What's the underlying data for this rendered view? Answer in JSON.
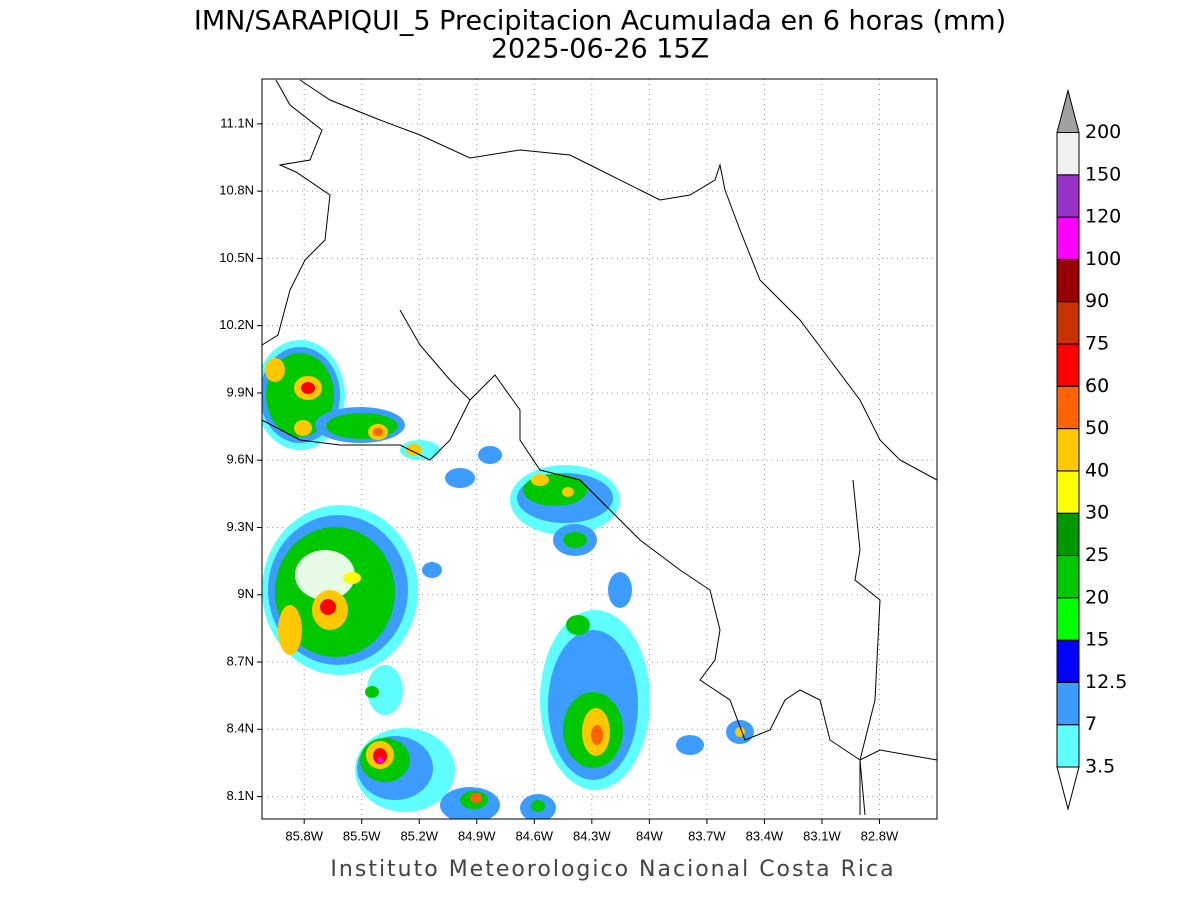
{
  "title": "IMN/SARAPIQUI_5 Precipitacion Acumulada en 6 horas (mm)",
  "subtitle": "2025-06-26 15Z",
  "footer": "Instituto Meteorologico Nacional Costa Rica",
  "map": {
    "xlim": [
      -86.02,
      -82.5
    ],
    "ylim": [
      8.0,
      11.3
    ],
    "grid": true,
    "xticks": [
      {
        "value": -85.8,
        "label": "85.8W"
      },
      {
        "value": -85.5,
        "label": "85.5W"
      },
      {
        "value": -85.2,
        "label": "85.2W"
      },
      {
        "value": -84.9,
        "label": "84.9W"
      },
      {
        "value": -84.6,
        "label": "84.6W"
      },
      {
        "value": -84.3,
        "label": "84.3W"
      },
      {
        "value": -84.0,
        "label": "84W"
      },
      {
        "value": -83.7,
        "label": "83.7W"
      },
      {
        "value": -83.4,
        "label": "83.4W"
      },
      {
        "value": -83.1,
        "label": "83.1W"
      },
      {
        "value": -82.8,
        "label": "82.8W"
      }
    ],
    "yticks": [
      {
        "value": 8.1,
        "label": "8.1N"
      },
      {
        "value": 8.4,
        "label": "8.4N"
      },
      {
        "value": 8.7,
        "label": "8.7N"
      },
      {
        "value": 9.0,
        "label": "9N"
      },
      {
        "value": 9.3,
        "label": "9.3N"
      },
      {
        "value": 9.6,
        "label": "9.6N"
      },
      {
        "value": 9.9,
        "label": "9.9N"
      },
      {
        "value": 10.2,
        "label": "10.2N"
      },
      {
        "value": 10.5,
        "label": "10.5N"
      },
      {
        "value": 10.8,
        "label": "10.8N"
      },
      {
        "value": 11.1,
        "label": "11.1N"
      }
    ]
  },
  "colorbar": {
    "levels": [
      3.5,
      7,
      12.5,
      15,
      20,
      25,
      30,
      40,
      50,
      60,
      75,
      90,
      100,
      120,
      150,
      200
    ],
    "colors": [
      "#ffffff",
      "#5fffff",
      "#3c9cff",
      "#0000ff",
      "#00ff00",
      "#00c800",
      "#009600",
      "#ffff00",
      "#ffc800",
      "#ff6400",
      "#ff0000",
      "#c83200",
      "#960000",
      "#ff00ff",
      "#9632c8",
      "#f0f0f0",
      "#a0a0a0"
    ]
  }
}
